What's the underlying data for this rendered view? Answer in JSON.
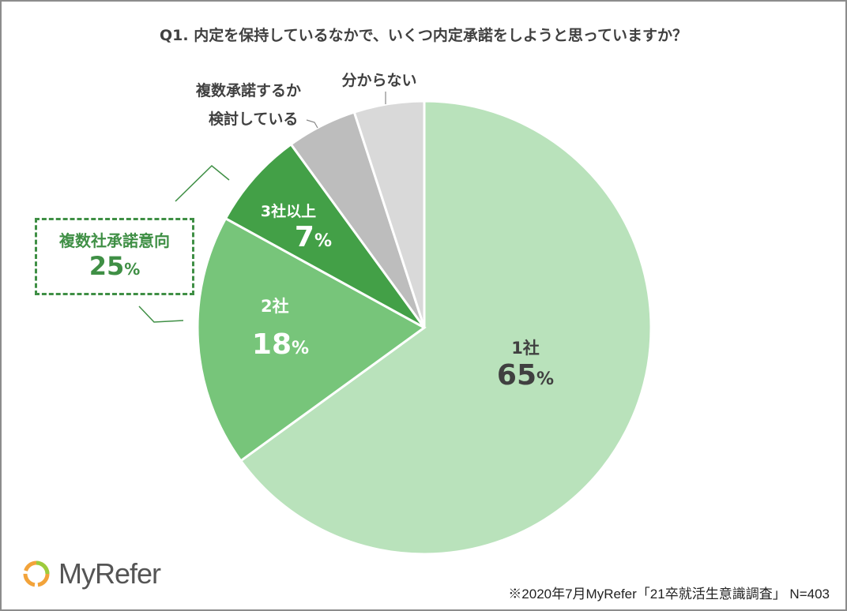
{
  "chart_data": {
    "type": "pie",
    "title": "Q1. 内定を保持しているなかで、いくつ内定承諾をしようと思っていますか？",
    "slices": [
      {
        "label": "1社",
        "value": 65,
        "color": "#b9e2bb"
      },
      {
        "label": "2社",
        "value": 18,
        "color": "#77c57a"
      },
      {
        "label": "3社以上",
        "value": 7,
        "color": "#43a047"
      },
      {
        "label_line1": "複数承諾するか",
        "label_line2": "検討している",
        "value": 5,
        "color": "#bdbdbd"
      },
      {
        "label": "分からない",
        "value": 5,
        "color": "#d9d9d9"
      }
    ],
    "percent_suffix": "%",
    "callout": {
      "label": "複数社承諾意向",
      "value": "25",
      "suffix": "%",
      "color": "#3f8f45"
    }
  },
  "footer": {
    "logo_text": "MyRefer",
    "note": "※2020年7月MyRefer「21卒就活生意識調査」 N=403"
  }
}
